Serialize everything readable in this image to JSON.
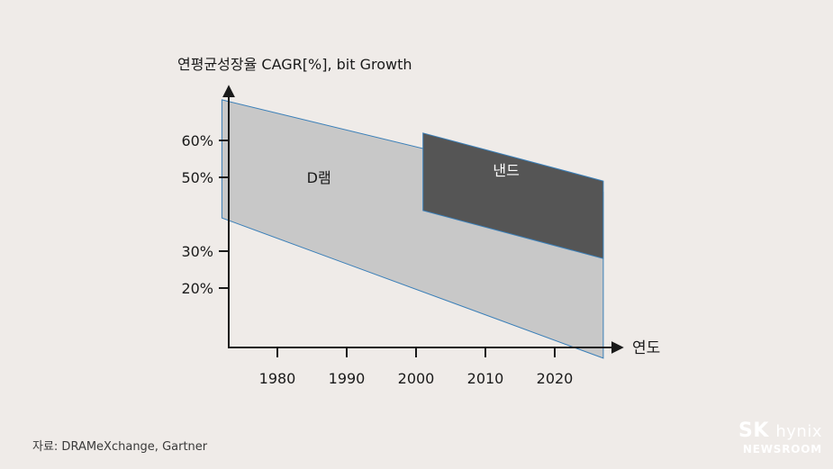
{
  "chart_data": {
    "type": "area",
    "ylabel": "연평균성장율 CAGR[%],  bit Growth",
    "xlabel": "연도",
    "x_ticks": [
      "1980",
      "1990",
      "2000",
      "2010",
      "2020"
    ],
    "y_ticks": [
      "60%",
      "50%",
      "30%",
      "20%"
    ],
    "series": [
      {
        "name": "D램",
        "color": "#c8c8c8",
        "x_range": [
          1972,
          2027
        ],
        "upper": [
          [
            1972,
            71
          ],
          [
            2027,
            46
          ]
        ],
        "lower": [
          [
            1972,
            39
          ],
          [
            2027,
            1
          ]
        ]
      },
      {
        "name": "낸드",
        "color": "#555555",
        "x_range": [
          2001,
          2027
        ],
        "upper": [
          [
            2001,
            62
          ],
          [
            2027,
            49
          ]
        ],
        "lower": [
          [
            2001,
            41
          ],
          [
            2027,
            28
          ]
        ]
      }
    ]
  },
  "footer": {
    "source": "자료: DRAMeXchange, Gartner",
    "logo_sk": "SK",
    "logo_hynix": "hynix",
    "logo_newsroom": "NEWSROOM"
  }
}
